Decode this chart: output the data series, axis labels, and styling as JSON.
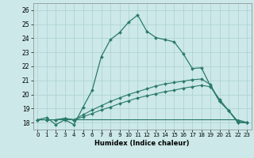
{
  "xlabel": "Humidex (Indice chaleur)",
  "bg_color": "#cce8e8",
  "grid_color": "#aad0d0",
  "line_color": "#2a7a6a",
  "xlim": [
    -0.5,
    23.5
  ],
  "ylim": [
    17.5,
    26.5
  ],
  "xticks": [
    0,
    1,
    2,
    3,
    4,
    5,
    6,
    7,
    8,
    9,
    10,
    11,
    12,
    13,
    14,
    15,
    16,
    17,
    18,
    19,
    20,
    21,
    22,
    23
  ],
  "yticks": [
    18,
    19,
    20,
    21,
    22,
    23,
    24,
    25,
    26
  ],
  "line1_x": [
    0,
    1,
    2,
    3,
    4,
    5,
    6,
    7,
    8,
    9,
    10,
    11,
    12,
    13,
    14,
    15,
    16,
    17,
    18,
    19,
    20,
    21,
    22,
    23
  ],
  "line1_y": [
    18.2,
    18.35,
    17.85,
    18.2,
    17.85,
    19.1,
    20.3,
    22.7,
    23.9,
    24.4,
    25.15,
    25.65,
    24.5,
    24.05,
    23.9,
    23.75,
    22.9,
    21.85,
    21.9,
    20.6,
    19.5,
    18.85,
    18.0,
    18.0
  ],
  "line2_x": [
    0,
    1,
    2,
    3,
    4,
    5,
    6,
    7,
    8,
    9,
    10,
    11,
    12,
    13,
    14,
    15,
    16,
    17,
    18,
    19,
    20,
    21,
    22,
    23
  ],
  "line2_y": [
    18.2,
    18.2,
    18.2,
    18.2,
    18.2,
    18.2,
    18.2,
    18.2,
    18.2,
    18.2,
    18.2,
    18.2,
    18.2,
    18.2,
    18.2,
    18.2,
    18.2,
    18.2,
    18.2,
    18.2,
    18.2,
    18.2,
    18.2,
    18.0
  ],
  "line3_x": [
    0,
    1,
    2,
    3,
    4,
    5,
    6,
    7,
    8,
    9,
    10,
    11,
    12,
    13,
    14,
    15,
    16,
    17,
    18,
    19,
    20,
    21,
    22,
    23
  ],
  "line3_y": [
    18.2,
    18.2,
    18.2,
    18.3,
    18.2,
    18.55,
    18.9,
    19.2,
    19.5,
    19.75,
    20.0,
    20.2,
    20.4,
    20.6,
    20.75,
    20.85,
    20.95,
    21.05,
    21.1,
    20.7,
    19.5,
    18.85,
    18.0,
    18.0
  ],
  "line4_x": [
    0,
    1,
    2,
    3,
    4,
    5,
    6,
    7,
    8,
    9,
    10,
    11,
    12,
    13,
    14,
    15,
    16,
    17,
    18,
    19,
    20,
    21,
    22,
    23
  ],
  "line4_y": [
    18.2,
    18.2,
    18.2,
    18.3,
    18.2,
    18.4,
    18.65,
    18.9,
    19.1,
    19.35,
    19.55,
    19.75,
    19.9,
    20.05,
    20.2,
    20.3,
    20.45,
    20.55,
    20.65,
    20.55,
    19.65,
    18.85,
    18.1,
    18.0
  ]
}
